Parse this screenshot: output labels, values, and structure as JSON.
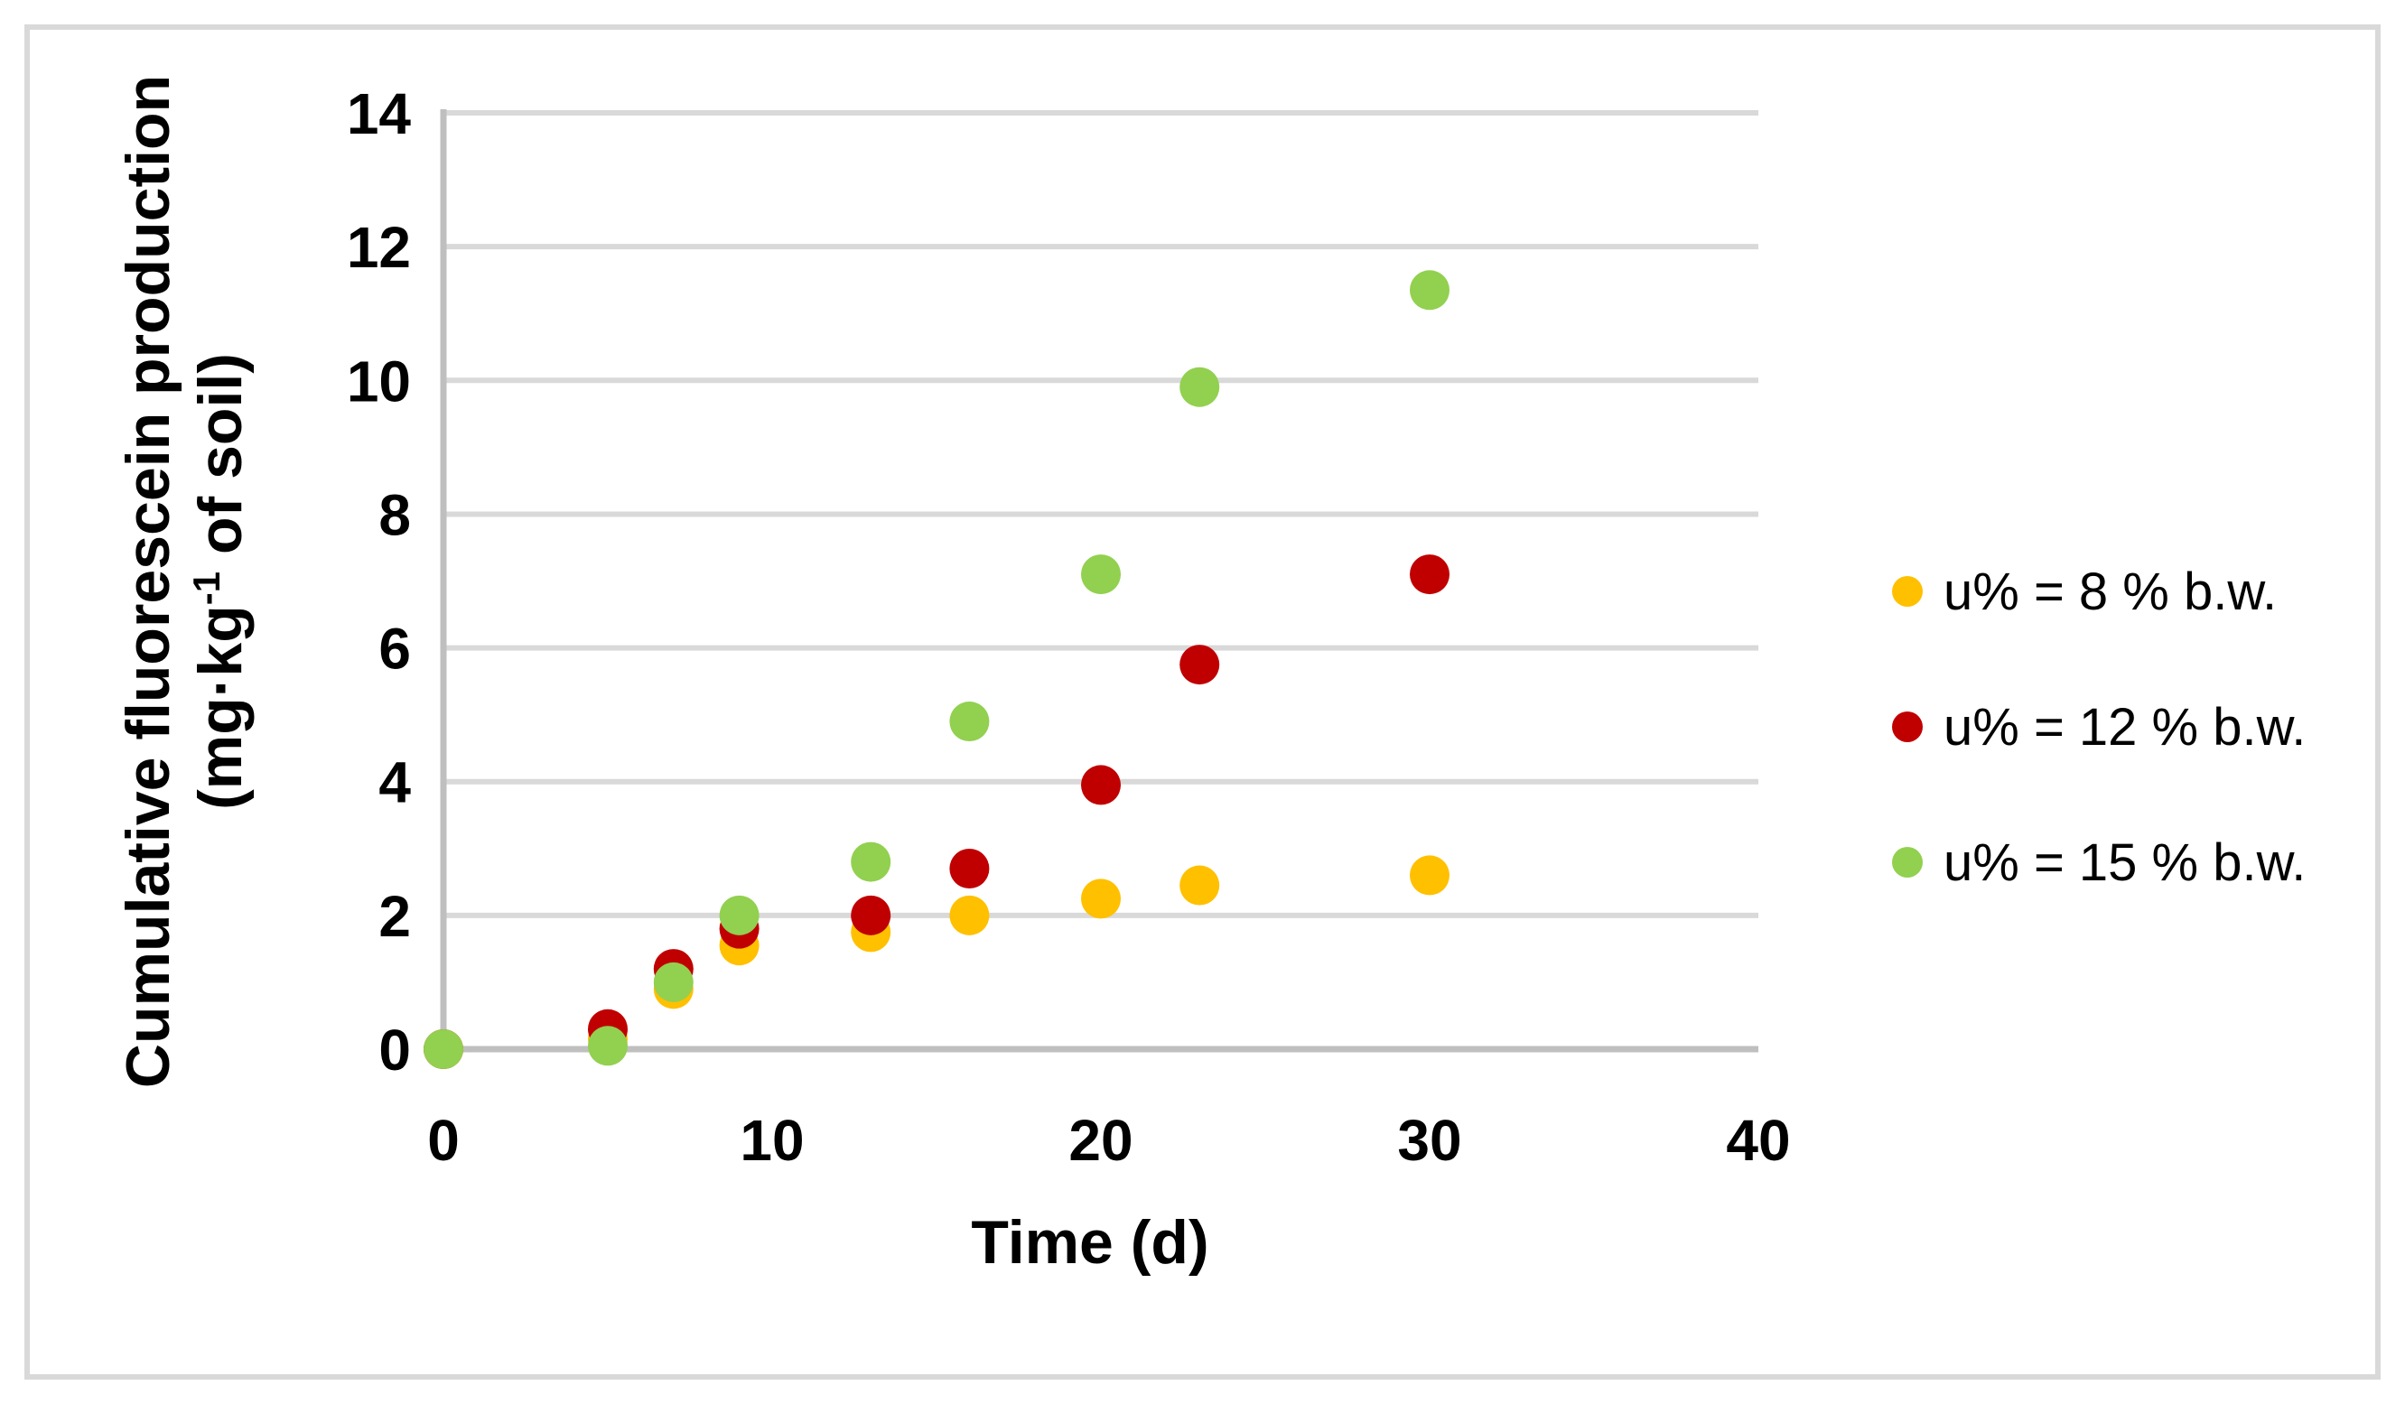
{
  "chart_data": {
    "type": "scatter",
    "title": "",
    "xlabel": "Time (d)",
    "ylabel": "Cumulative fluorescein production (mg·kg-1 of soil)",
    "ylabel_line1": "Cumulative fluorescein production",
    "ylabel_line2_pre": "(mg·kg",
    "ylabel_line2_sup": "-1",
    "ylabel_line2_post": " of soil)",
    "xlim": [
      0,
      40
    ],
    "ylim": [
      0,
      14
    ],
    "x_ticks": [
      0,
      10,
      20,
      30,
      40
    ],
    "y_ticks": [
      0,
      2,
      4,
      6,
      8,
      10,
      12,
      14
    ],
    "grid": "horizontal",
    "legend_position": "right",
    "series": [
      {
        "name": "u% = 8 % b.w.",
        "color": "#FFC000",
        "points": [
          [
            0,
            0
          ],
          [
            5,
            0.15
          ],
          [
            7,
            0.9
          ],
          [
            9,
            1.55
          ],
          [
            13,
            1.75
          ],
          [
            16,
            2.0
          ],
          [
            20,
            2.25
          ],
          [
            23,
            2.45
          ],
          [
            30,
            2.6
          ]
        ]
      },
      {
        "name": "u% = 12 % b.w.",
        "color": "#C00000",
        "points": [
          [
            0,
            0
          ],
          [
            5,
            0.3
          ],
          [
            7,
            1.2
          ],
          [
            9,
            1.8
          ],
          [
            13,
            2.0
          ],
          [
            16,
            2.7
          ],
          [
            20,
            3.95
          ],
          [
            23,
            5.75
          ],
          [
            30,
            7.1
          ]
        ]
      },
      {
        "name": "u% = 15 % b.w.",
        "color": "#92D050",
        "points": [
          [
            0,
            0
          ],
          [
            5,
            0.05
          ],
          [
            7,
            1.0
          ],
          [
            9,
            2.0
          ],
          [
            13,
            2.8
          ],
          [
            16,
            4.9
          ],
          [
            20,
            7.1
          ],
          [
            23,
            9.9
          ],
          [
            30,
            11.35
          ]
        ]
      }
    ],
    "colors": {
      "gridline": "#D9D9D9",
      "axis": "#BFBFBF",
      "frame": "#D9D9D9",
      "text": "#000000"
    }
  }
}
